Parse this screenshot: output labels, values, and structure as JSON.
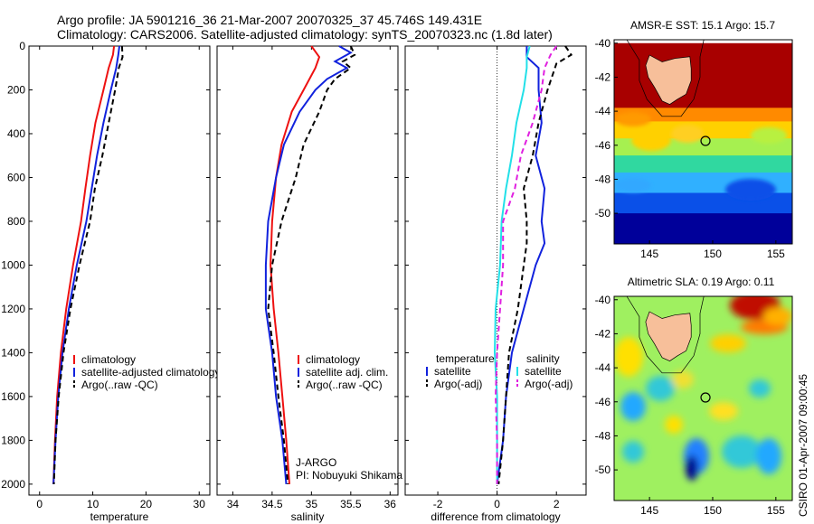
{
  "figure": {
    "title_line1": "Argo profile: JA 5901216_36 21-Mar-2007 20070325_37 45.746S 149.431E",
    "title_line2": "Climatology: CARS2006. Satellite-adjusted climatology: synTS_20070323.nc (1.8d later)",
    "credit_line1": "J-ARGO",
    "credit_line2": "PI: Nobuyuki Shikama",
    "stamp": "CSIRO 01-Apr-2007 09:00:45"
  },
  "colors": {
    "climatology": "#ee1111",
    "satellite": "#1122dd",
    "argo": "#000000",
    "sal_satellite": "#22e0e8",
    "sal_argo": "#e020e0",
    "land": "#f7bf9a"
  },
  "chart_data": [
    {
      "id": "temperature",
      "type": "line",
      "xlabel": "temperature",
      "ylabel": "",
      "xlim": [
        -2,
        32
      ],
      "ylim": [
        2050,
        0
      ],
      "xticks": [
        0,
        10,
        20,
        30
      ],
      "yticks": [
        0,
        200,
        400,
        600,
        800,
        1000,
        1200,
        1400,
        1600,
        1800,
        2000
      ],
      "legend_position": "bottom-right",
      "series": [
        {
          "name": "climatology",
          "color": "#ee1111",
          "dash": "",
          "points": [
            [
              14.0,
              0
            ],
            [
              13.8,
              40
            ],
            [
              13.0,
              100
            ],
            [
              12.0,
              200
            ],
            [
              10.5,
              350
            ],
            [
              9.5,
              500
            ],
            [
              8.6,
              650
            ],
            [
              7.8,
              800
            ],
            [
              6.3,
              1000
            ],
            [
              5.0,
              1200
            ],
            [
              4.0,
              1400
            ],
            [
              3.3,
              1600
            ],
            [
              2.9,
              1800
            ],
            [
              2.6,
              2000
            ]
          ]
        },
        {
          "name": "satellite-adjusted climatology",
          "color": "#1122dd",
          "dash": "",
          "points": [
            [
              15.0,
              0
            ],
            [
              14.8,
              40
            ],
            [
              14.4,
              100
            ],
            [
              13.4,
              200
            ],
            [
              12.0,
              350
            ],
            [
              10.8,
              500
            ],
            [
              9.8,
              650
            ],
            [
              8.8,
              800
            ],
            [
              7.0,
              1000
            ],
            [
              5.5,
              1200
            ],
            [
              4.3,
              1400
            ],
            [
              3.5,
              1600
            ],
            [
              3.0,
              1800
            ],
            [
              2.6,
              2000
            ]
          ]
        },
        {
          "name": "Argo(..raw -QC)",
          "color": "#000000",
          "dash": "6,4",
          "points": [
            [
              15.5,
              0
            ],
            [
              15.6,
              50
            ],
            [
              14.9,
              100
            ],
            [
              14.2,
              200
            ],
            [
              13.0,
              350
            ],
            [
              11.8,
              500
            ],
            [
              10.4,
              650
            ],
            [
              9.5,
              800
            ],
            [
              7.5,
              1000
            ],
            [
              5.8,
              1200
            ],
            [
              4.5,
              1400
            ],
            [
              3.6,
              1600
            ],
            [
              3.0,
              1800
            ],
            [
              2.7,
              2000
            ]
          ]
        }
      ]
    },
    {
      "id": "salinity",
      "type": "line",
      "xlabel": "salinity",
      "ylabel": "",
      "xlim": [
        33.8,
        36.1
      ],
      "ylim": [
        2050,
        0
      ],
      "xticks": [
        34,
        34.5,
        35,
        35.5,
        36
      ],
      "xtick_labels": [
        "34",
        "34.5",
        "35",
        "35.5",
        "36"
      ],
      "yticks": [
        0,
        200,
        400,
        600,
        800,
        1000,
        1200,
        1400,
        1600,
        1800,
        2000
      ],
      "legend_position": "bottom-right",
      "series": [
        {
          "name": "climatology",
          "color": "#ee1111",
          "dash": "",
          "points": [
            [
              35.0,
              0
            ],
            [
              35.1,
              50
            ],
            [
              35.05,
              100
            ],
            [
              34.9,
              200
            ],
            [
              34.75,
              300
            ],
            [
              34.62,
              450
            ],
            [
              34.55,
              600
            ],
            [
              34.5,
              800
            ],
            [
              34.48,
              1000
            ],
            [
              34.52,
              1200
            ],
            [
              34.58,
              1400
            ],
            [
              34.63,
              1600
            ],
            [
              34.68,
              1800
            ],
            [
              34.72,
              2000
            ]
          ]
        },
        {
          "name": "satellite adj. clim.",
          "color": "#1122dd",
          "dash": "",
          "points": [
            [
              35.35,
              0
            ],
            [
              35.5,
              30
            ],
            [
              35.3,
              70
            ],
            [
              35.45,
              100
            ],
            [
              35.2,
              150
            ],
            [
              35.05,
              200
            ],
            [
              34.85,
              300
            ],
            [
              34.65,
              450
            ],
            [
              34.55,
              600
            ],
            [
              34.45,
              800
            ],
            [
              34.42,
              1000
            ],
            [
              34.42,
              1200
            ],
            [
              34.5,
              1400
            ],
            [
              34.55,
              1600
            ],
            [
              34.63,
              1800
            ],
            [
              34.68,
              2000
            ]
          ]
        },
        {
          "name": "Argo(..raw -QC)",
          "color": "#000000",
          "dash": "6,4",
          "points": [
            [
              35.5,
              0
            ],
            [
              35.55,
              40
            ],
            [
              35.4,
              70
            ],
            [
              35.5,
              100
            ],
            [
              35.3,
              150
            ],
            [
              35.2,
              200
            ],
            [
              35.1,
              300
            ],
            [
              34.9,
              450
            ],
            [
              34.8,
              600
            ],
            [
              34.62,
              800
            ],
            [
              34.5,
              1000
            ],
            [
              34.45,
              1200
            ],
            [
              34.52,
              1400
            ],
            [
              34.58,
              1600
            ],
            [
              34.65,
              1800
            ],
            [
              34.7,
              2000
            ]
          ]
        }
      ]
    },
    {
      "id": "difference",
      "type": "line",
      "xlabel": "difference from climatology",
      "ylabel": "",
      "xlim": [
        -3.1,
        3.0
      ],
      "ylim": [
        2050,
        0
      ],
      "xticks": [
        -2,
        0,
        2
      ],
      "yticks": [
        0,
        200,
        400,
        600,
        800,
        1000,
        1200,
        1400,
        1600,
        1800,
        2000
      ],
      "legend_position": "bottom-right",
      "legend_headers": [
        "temperature",
        "salinity"
      ],
      "zero_line": true,
      "series": [
        {
          "name": "satellite",
          "group": "temperature",
          "color": "#1122dd",
          "dash": "",
          "points": [
            [
              1.0,
              0
            ],
            [
              1.0,
              50
            ],
            [
              1.4,
              100
            ],
            [
              1.4,
              200
            ],
            [
              1.5,
              350
            ],
            [
              1.3,
              500
            ],
            [
              1.6,
              650
            ],
            [
              1.5,
              800
            ],
            [
              1.6,
              900
            ],
            [
              1.3,
              1000
            ],
            [
              0.9,
              1200
            ],
            [
              0.5,
              1400
            ],
            [
              0.3,
              1600
            ],
            [
              0.2,
              1800
            ],
            [
              0.0,
              2000
            ]
          ]
        },
        {
          "name": "Argo(-adj)",
          "group": "temperature",
          "color": "#000000",
          "dash": "6,4",
          "points": [
            [
              2.3,
              0
            ],
            [
              2.5,
              40
            ],
            [
              2.0,
              80
            ],
            [
              1.7,
              200
            ],
            [
              1.4,
              350
            ],
            [
              1.2,
              500
            ],
            [
              0.9,
              650
            ],
            [
              1.0,
              800
            ],
            [
              1.0,
              900
            ],
            [
              0.9,
              1000
            ],
            [
              0.7,
              1200
            ],
            [
              0.4,
              1400
            ],
            [
              0.3,
              1600
            ],
            [
              0.2,
              1800
            ],
            [
              0.05,
              2000
            ]
          ]
        },
        {
          "name": "satellite",
          "group": "salinity",
          "color": "#22e0e8",
          "dash": "",
          "points": [
            [
              1.1,
              0
            ],
            [
              1.0,
              50
            ],
            [
              1.0,
              100
            ],
            [
              0.9,
              200
            ],
            [
              0.65,
              350
            ],
            [
              0.5,
              500
            ],
            [
              0.3,
              650
            ],
            [
              0.15,
              800
            ],
            [
              0.1,
              1000
            ],
            [
              -0.05,
              1200
            ],
            [
              -0.08,
              1400
            ],
            [
              0.0,
              1600
            ],
            [
              0.0,
              1800
            ],
            [
              0.0,
              2000
            ]
          ]
        },
        {
          "name": "Argo(-adj)",
          "group": "salinity",
          "color": "#e020e0",
          "dash": "6,4",
          "points": [
            [
              2.0,
              0
            ],
            [
              1.8,
              40
            ],
            [
              1.6,
              100
            ],
            [
              1.5,
              200
            ],
            [
              1.2,
              350
            ],
            [
              0.8,
              500
            ],
            [
              0.6,
              650
            ],
            [
              0.2,
              800
            ],
            [
              0.2,
              1000
            ],
            [
              0.1,
              1200
            ],
            [
              0.0,
              1400
            ],
            [
              -0.05,
              1600
            ],
            [
              0.0,
              1800
            ],
            [
              0.0,
              2000
            ]
          ]
        }
      ]
    },
    {
      "id": "sst_map",
      "type": "heatmap",
      "title": "AMSR-E SST: 15.1 Argo: 15.7",
      "xlim": [
        142.2,
        156.3
      ],
      "ylim": [
        -51.8,
        -39.8
      ],
      "xticks": [
        145,
        150,
        155
      ],
      "yticks": [
        -40,
        -42,
        -44,
        -46,
        -48,
        -50
      ],
      "marker": {
        "lon": 149.431,
        "lat": -45.746
      },
      "bands": [
        {
          "lat": -40.0,
          "color": "#a80000"
        },
        {
          "lat": -43.0,
          "color": "#a80000"
        },
        {
          "lat": -43.8,
          "color": "#ff8a00"
        },
        {
          "lat": -44.6,
          "color": "#ffd000"
        },
        {
          "lat": -45.6,
          "color": "#a6f050"
        },
        {
          "lat": -46.6,
          "color": "#30d8a0"
        },
        {
          "lat": -47.6,
          "color": "#30b0ff"
        },
        {
          "lat": -48.8,
          "color": "#0a50e8"
        },
        {
          "lat": -50.0,
          "color": "#00009a"
        },
        {
          "lat": -51.8,
          "color": "#00007a"
        }
      ]
    },
    {
      "id": "sla_map",
      "type": "heatmap",
      "title": "Altimetric SLA: 0.19 Argo: 0.11",
      "xlim": [
        142.2,
        156.3
      ],
      "ylim": [
        -51.8,
        -39.8
      ],
      "xticks": [
        145,
        150,
        155
      ],
      "yticks": [
        -40,
        -42,
        -44,
        -46,
        -48,
        -50
      ],
      "marker": {
        "lon": 149.431,
        "lat": -45.746
      },
      "background_color": "#9ff060"
    }
  ]
}
